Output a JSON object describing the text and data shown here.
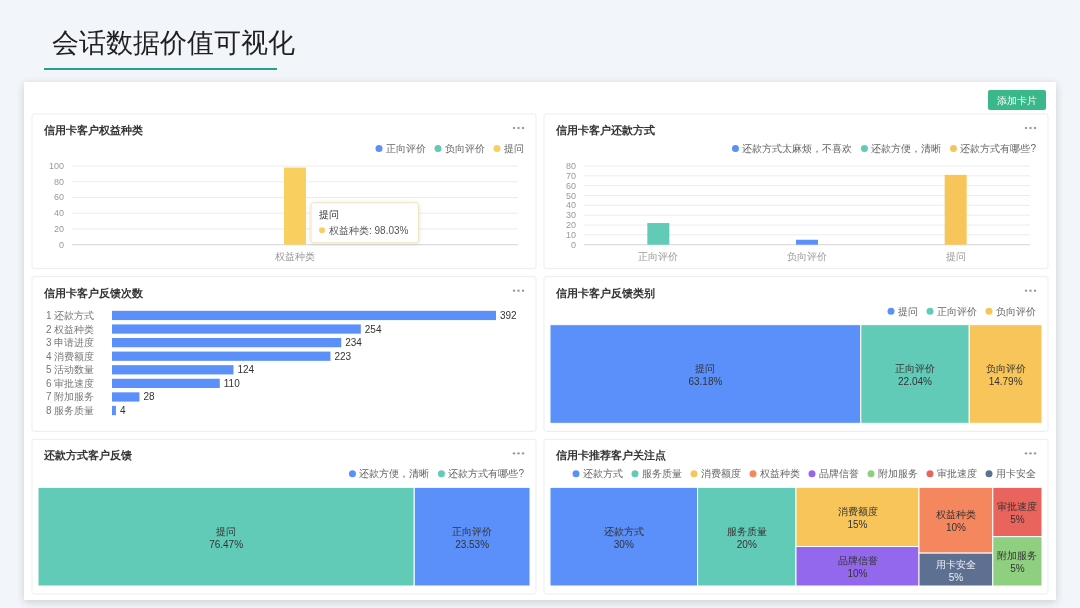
{
  "chart_data": [
    {
      "type": "other",
      "title": "会话数据价值可视化",
      "annotations": [
        "添加卡片"
      ]
    },
    {
      "type": "bar",
      "title": "信用卡客户权益种类",
      "categories": [
        "权益种类"
      ],
      "series": [
        {
          "name": "正向评价",
          "color": "#5b8ff9",
          "values": [
            null
          ]
        },
        {
          "name": "负向评价",
          "color": "#62cbb8",
          "values": [
            null
          ]
        },
        {
          "name": "提问",
          "color": "#f9cf5f",
          "values": [
            98.03
          ]
        }
      ],
      "ylim": [
        0,
        100
      ],
      "yticks": [
        0,
        20,
        40,
        60,
        80,
        100
      ],
      "grid": "y",
      "legend": "top right",
      "annotations": [
        "提问",
        "权益种类: 98.03%"
      ]
    },
    {
      "type": "bar",
      "title": "信用卡客户还款方式",
      "categories": [
        "正向评价",
        "负向评价",
        "提问"
      ],
      "series": [
        {
          "name": "还款方式太麻烦，不喜欢",
          "color": "#5b8ff9",
          "values": [
            null,
            5,
            null
          ]
        },
        {
          "name": "还款方便，清晰",
          "color": "#62cbb8",
          "values": [
            22,
            null,
            null
          ]
        },
        {
          "name": "还款方式有哪些?",
          "color": "#f8c55a",
          "values": [
            null,
            null,
            71
          ]
        }
      ],
      "ylim": [
        0,
        80
      ],
      "yticks": [
        0,
        10,
        20,
        30,
        40,
        50,
        60,
        70,
        80
      ],
      "grid": "y",
      "legend": "top right"
    },
    {
      "type": "bar",
      "title": "信用卡客户反馈次数",
      "orientation": "horizontal",
      "categories": [
        "1 还款方式",
        "2 权益种类",
        "3 申请进度",
        "4 消费额度",
        "5 活动数量",
        "6 审批速度",
        "7 附加服务",
        "8 服务质量"
      ],
      "values": [
        392,
        254,
        234,
        223,
        124,
        110,
        28,
        4
      ],
      "color": "#5b8ff9",
      "data_labels": true
    },
    {
      "type": "other",
      "title": "信用卡客户反馈类别",
      "categories": [
        "提问",
        "正向评价",
        "负向评价"
      ],
      "series": [
        {
          "name": "提问",
          "color": "#5b8ff9",
          "values": [
            63.18,
            null,
            null
          ],
          "value_labels": [
            "63.18%",
            null,
            null
          ]
        },
        {
          "name": "正向评价",
          "color": "#62cbb8",
          "values": [
            null,
            22.04,
            null
          ],
          "value_labels": [
            null,
            "22.04%",
            null
          ]
        },
        {
          "name": "负向评价",
          "color": "#f8c55a",
          "values": [
            null,
            null,
            14.79
          ],
          "value_labels": [
            null,
            null,
            "14.79%"
          ]
        }
      ],
      "legend": "top right"
    },
    {
      "type": "other",
      "title": "还款方式客户反馈",
      "categories": [
        "提问",
        "正向评价"
      ],
      "series": [
        {
          "name": "还款方便，清晰",
          "color": "#5b8ff9",
          "values": [
            null,
            23.53
          ],
          "value_labels": [
            null,
            "23.53%"
          ]
        },
        {
          "name": "还款方式有哪些?",
          "color": "#62cbb8",
          "values": [
            76.47,
            null
          ],
          "value_labels": [
            "76.47%",
            null
          ]
        }
      ],
      "legend": "top right"
    },
    {
      "type": "other",
      "title": "信用卡推荐客户关注点",
      "categories": [
        "还款方式",
        "服务质量",
        "消费额度",
        "品牌信誉",
        "权益种类",
        "用卡安全",
        "审批速度",
        "附加服务"
      ],
      "series": [
        {
          "name": "还款方式",
          "color": "#5b8ff9",
          "values": [
            30,
            null,
            null,
            null,
            null,
            null,
            null,
            null
          ],
          "value_labels": [
            "30%",
            null,
            null,
            null,
            null,
            null,
            null,
            null
          ]
        },
        {
          "name": "服务质量",
          "color": "#62cbb8",
          "values": [
            null,
            20,
            null,
            null,
            null,
            null,
            null,
            null
          ],
          "value_labels": [
            null,
            "20%",
            null,
            null,
            null,
            null,
            null,
            null
          ]
        },
        {
          "name": "消费额度",
          "color": "#f8c55a",
          "values": [
            null,
            null,
            15,
            null,
            null,
            null,
            null,
            null
          ],
          "value_labels": [
            null,
            null,
            "15%",
            null,
            null,
            null,
            null,
            null
          ]
        },
        {
          "name": "权益种类",
          "color": "#f5875f",
          "values": [
            null,
            null,
            null,
            null,
            10,
            null,
            null,
            null
          ],
          "value_labels": [
            null,
            null,
            null,
            null,
            "10%",
            null,
            null,
            null
          ]
        },
        {
          "name": "品牌信誉",
          "color": "#9468ec",
          "values": [
            null,
            null,
            null,
            10,
            null,
            null,
            null,
            null
          ],
          "value_labels": [
            null,
            null,
            null,
            "10%",
            null,
            null,
            null,
            null
          ]
        },
        {
          "name": "附加服务",
          "color": "#8ed07f",
          "values": [
            null,
            null,
            null,
            null,
            null,
            null,
            null,
            5
          ],
          "value_labels": [
            null,
            null,
            null,
            null,
            null,
            null,
            null,
            "5%"
          ]
        },
        {
          "name": "审批速度",
          "color": "#e9645c",
          "values": [
            null,
            null,
            null,
            null,
            null,
            null,
            5,
            null
          ],
          "value_labels": [
            null,
            null,
            null,
            null,
            null,
            null,
            "5%",
            null
          ]
        },
        {
          "name": "用卡安全",
          "color": "#5d7092",
          "values": [
            null,
            null,
            null,
            null,
            null,
            5,
            null,
            null
          ],
          "value_labels": [
            null,
            null,
            null,
            null,
            null,
            "5%",
            null,
            null
          ]
        }
      ],
      "legend": "top right"
    }
  ]
}
